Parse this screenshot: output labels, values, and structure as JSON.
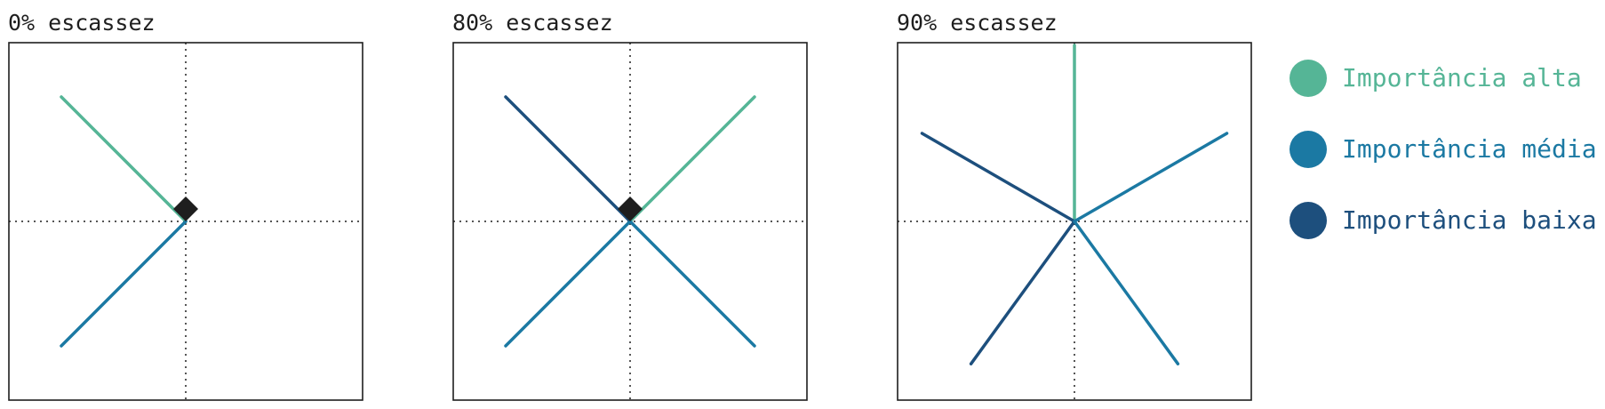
{
  "colors": {
    "alta": "#55b596",
    "media": "#1b79a3",
    "baixa": "#1d4f7d",
    "marker": "#1e1e1e"
  },
  "legend": [
    {
      "label": "Importância alta",
      "level": "alta"
    },
    {
      "label": "Importância média",
      "level": "media"
    },
    {
      "label": "Importância baixa",
      "level": "baixa"
    }
  ],
  "panels": [
    {
      "title": "0% escassez",
      "has_marker": true,
      "spokes": [
        {
          "angle_deg": 135,
          "level": "alta"
        },
        {
          "angle_deg": 225,
          "level": "media"
        }
      ]
    },
    {
      "title": "80% escassez",
      "has_marker": true,
      "spokes": [
        {
          "angle_deg": 45,
          "level": "alta"
        },
        {
          "angle_deg": 135,
          "level": "baixa"
        },
        {
          "angle_deg": 225,
          "level": "media"
        },
        {
          "angle_deg": 315,
          "level": "media"
        }
      ]
    },
    {
      "title": "90% escassez",
      "has_marker": false,
      "spokes": [
        {
          "angle_deg": 90,
          "level": "alta"
        },
        {
          "angle_deg": 30,
          "level": "media"
        },
        {
          "angle_deg": 150,
          "level": "baixa"
        },
        {
          "angle_deg": 234,
          "level": "baixa"
        },
        {
          "angle_deg": 306,
          "level": "media"
        }
      ]
    }
  ]
}
